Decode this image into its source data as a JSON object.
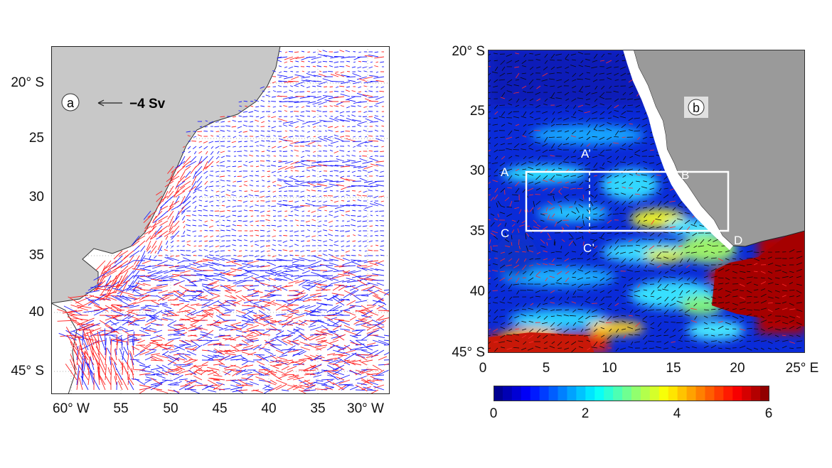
{
  "panel_a": {
    "label": "a",
    "scale_label": "−4 Sv",
    "lat_ticks": [
      "20° S",
      "25",
      "30",
      "35",
      "40",
      "45° S"
    ],
    "lon_ticks": [
      "60° W",
      "55",
      "50",
      "45",
      "40",
      "35",
      "30° W"
    ],
    "colors": {
      "land": "#c8c8c8",
      "positive": "#1a1aff",
      "negative": "#ff2020"
    }
  },
  "panel_b": {
    "label": "b",
    "lat_ticks": [
      "20° S",
      "25",
      "30",
      "35",
      "40",
      "45° S"
    ],
    "lon_ticks": [
      "0",
      "5",
      "10",
      "15",
      "20",
      "25° E"
    ],
    "points": {
      "A": "A",
      "A_prime": "A’",
      "B": "B",
      "C": "C",
      "C_prime": "C’",
      "D": "D"
    },
    "colors": {
      "land": "#9a9a9a",
      "box": "#ffffff"
    }
  },
  "colorbar": {
    "ticks": [
      "0",
      "2",
      "4",
      "6"
    ],
    "range": [
      0,
      6
    ],
    "colormap": "jet"
  }
}
